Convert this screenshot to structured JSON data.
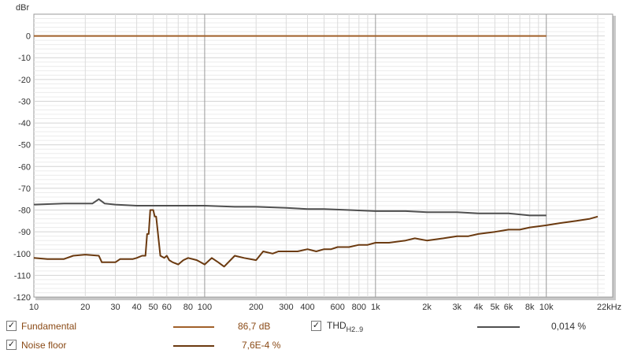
{
  "chart_data": {
    "type": "line",
    "ylabel": "dBr",
    "xlabel": "",
    "x_scale": "log",
    "xlim": [
      10,
      22000
    ],
    "ylim": [
      -120,
      10
    ],
    "yticks": [
      0,
      -10,
      -20,
      -30,
      -40,
      -50,
      -60,
      -70,
      -80,
      -90,
      -100,
      -110,
      -120
    ],
    "xtick_labels": [
      {
        "v": 10,
        "label": "10"
      },
      {
        "v": 20,
        "label": "20"
      },
      {
        "v": 30,
        "label": "30"
      },
      {
        "v": 40,
        "label": "40"
      },
      {
        "v": 50,
        "label": "50"
      },
      {
        "v": 60,
        "label": "60"
      },
      {
        "v": 80,
        "label": "80"
      },
      {
        "v": 100,
        "label": "100"
      },
      {
        "v": 200,
        "label": "200"
      },
      {
        "v": 300,
        "label": "300"
      },
      {
        "v": 400,
        "label": "400"
      },
      {
        "v": 600,
        "label": "600"
      },
      {
        "v": 800,
        "label": "800"
      },
      {
        "v": 1000,
        "label": "1k"
      },
      {
        "v": 2000,
        "label": "2k"
      },
      {
        "v": 3000,
        "label": "3k"
      },
      {
        "v": 4000,
        "label": "4k"
      },
      {
        "v": 5000,
        "label": "5k"
      },
      {
        "v": 6000,
        "label": "6k"
      },
      {
        "v": 8000,
        "label": "8k"
      },
      {
        "v": 10000,
        "label": "10k"
      },
      {
        "v": 22000,
        "label": "22kHz"
      }
    ],
    "grid": true,
    "series": [
      {
        "name": "Fundamental",
        "color": "#a0602a",
        "x": [
          10,
          10000
        ],
        "y": [
          0,
          0
        ]
      },
      {
        "name": "THD H2..9",
        "color": "#505050",
        "x": [
          10,
          15,
          20,
          22,
          24,
          26,
          30,
          40,
          50,
          60,
          80,
          100,
          150,
          200,
          300,
          400,
          500,
          700,
          1000,
          1500,
          2000,
          3000,
          4000,
          5000,
          6000,
          7000,
          8000,
          10000
        ],
        "y": [
          -77.5,
          -77,
          -77,
          -77,
          -75,
          -77,
          -77.5,
          -78,
          -78,
          -78,
          -78,
          -78,
          -78.5,
          -78.5,
          -79,
          -79.5,
          -79.5,
          -80,
          -80.5,
          -80.5,
          -81,
          -81,
          -81.5,
          -81.5,
          -81.5,
          -82,
          -82.5,
          -82.5
        ]
      },
      {
        "name": "Noise floor",
        "color": "#6b3a10",
        "x": [
          10,
          12,
          15,
          17,
          20,
          24,
          25,
          30,
          32,
          38,
          40,
          43,
          45,
          46,
          47,
          48,
          50,
          51,
          52,
          55,
          58,
          60,
          62,
          65,
          70,
          75,
          80,
          90,
          100,
          110,
          120,
          130,
          150,
          170,
          200,
          220,
          250,
          270,
          300,
          350,
          400,
          450,
          500,
          550,
          600,
          700,
          800,
          900,
          1000,
          1200,
          1500,
          1700,
          2000,
          2500,
          3000,
          3500,
          4000,
          5000,
          6000,
          7000,
          8000,
          10000,
          12000,
          15000,
          18000,
          20000
        ],
        "y": [
          -102,
          -102.5,
          -102.5,
          -101,
          -100.5,
          -101,
          -104,
          -104,
          -102.5,
          -102.5,
          -102,
          -101,
          -101,
          -91,
          -91,
          -80,
          -80,
          -83,
          -83,
          -101,
          -102,
          -101,
          -103,
          -104,
          -105,
          -103,
          -102,
          -103,
          -105,
          -102,
          -104,
          -106,
          -101,
          -102,
          -103,
          -99,
          -100,
          -99,
          -99,
          -99,
          -98,
          -99,
          -98,
          -98,
          -97,
          -97,
          -96,
          -96,
          -95,
          -95,
          -94,
          -93,
          -94,
          -93,
          -92,
          -92,
          -91,
          -90,
          -89,
          -89,
          -88,
          -87,
          -86,
          -85,
          -84,
          -83
        ]
      }
    ]
  },
  "legend": {
    "items": [
      {
        "label": "Fundamental",
        "value": "86,7 dB",
        "checked": "✓"
      },
      {
        "label": "THD",
        "sub": "H2..9",
        "value": "0,014 %",
        "checked": "✓"
      },
      {
        "label": "Noise floor",
        "value": "7,6E-4 %",
        "checked": "✓"
      }
    ]
  }
}
